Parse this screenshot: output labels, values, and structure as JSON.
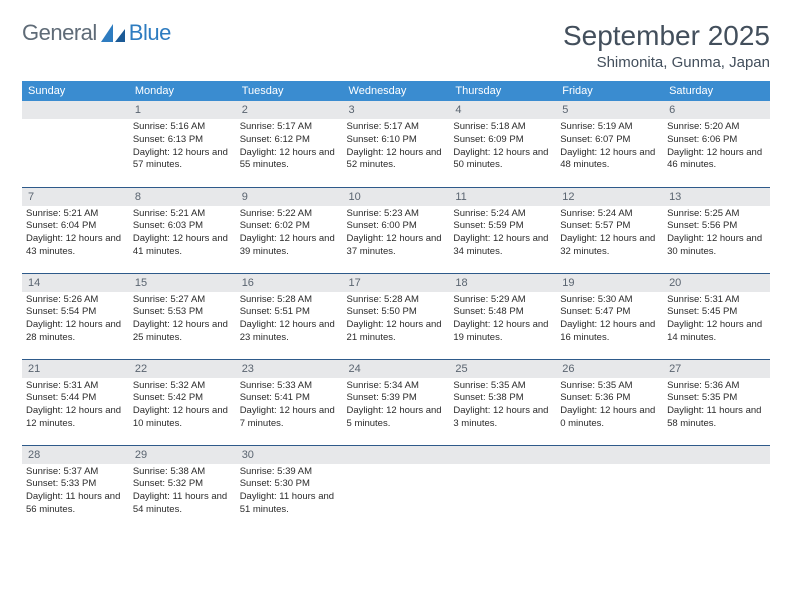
{
  "logo": {
    "text1": "General",
    "text2": "Blue"
  },
  "title": "September 2025",
  "location": "Shimonita, Gunma, Japan",
  "colors": {
    "header_bg": "#3a8cd0",
    "header_text": "#ffffff",
    "daynum_bg": "#e7e8ea",
    "daynum_text": "#5a6470",
    "rule": "#2e5a8a",
    "body_text": "#2b2b2b",
    "title_text": "#434f5c",
    "logo_gray": "#5f6b77",
    "logo_blue": "#2e7cc0"
  },
  "day_headers": [
    "Sunday",
    "Monday",
    "Tuesday",
    "Wednesday",
    "Thursday",
    "Friday",
    "Saturday"
  ],
  "weeks": [
    [
      {
        "n": "",
        "sunrise": "",
        "sunset": "",
        "daylight": ""
      },
      {
        "n": "1",
        "sunrise": "Sunrise: 5:16 AM",
        "sunset": "Sunset: 6:13 PM",
        "daylight": "Daylight: 12 hours and 57 minutes."
      },
      {
        "n": "2",
        "sunrise": "Sunrise: 5:17 AM",
        "sunset": "Sunset: 6:12 PM",
        "daylight": "Daylight: 12 hours and 55 minutes."
      },
      {
        "n": "3",
        "sunrise": "Sunrise: 5:17 AM",
        "sunset": "Sunset: 6:10 PM",
        "daylight": "Daylight: 12 hours and 52 minutes."
      },
      {
        "n": "4",
        "sunrise": "Sunrise: 5:18 AM",
        "sunset": "Sunset: 6:09 PM",
        "daylight": "Daylight: 12 hours and 50 minutes."
      },
      {
        "n": "5",
        "sunrise": "Sunrise: 5:19 AM",
        "sunset": "Sunset: 6:07 PM",
        "daylight": "Daylight: 12 hours and 48 minutes."
      },
      {
        "n": "6",
        "sunrise": "Sunrise: 5:20 AM",
        "sunset": "Sunset: 6:06 PM",
        "daylight": "Daylight: 12 hours and 46 minutes."
      }
    ],
    [
      {
        "n": "7",
        "sunrise": "Sunrise: 5:21 AM",
        "sunset": "Sunset: 6:04 PM",
        "daylight": "Daylight: 12 hours and 43 minutes."
      },
      {
        "n": "8",
        "sunrise": "Sunrise: 5:21 AM",
        "sunset": "Sunset: 6:03 PM",
        "daylight": "Daylight: 12 hours and 41 minutes."
      },
      {
        "n": "9",
        "sunrise": "Sunrise: 5:22 AM",
        "sunset": "Sunset: 6:02 PM",
        "daylight": "Daylight: 12 hours and 39 minutes."
      },
      {
        "n": "10",
        "sunrise": "Sunrise: 5:23 AM",
        "sunset": "Sunset: 6:00 PM",
        "daylight": "Daylight: 12 hours and 37 minutes."
      },
      {
        "n": "11",
        "sunrise": "Sunrise: 5:24 AM",
        "sunset": "Sunset: 5:59 PM",
        "daylight": "Daylight: 12 hours and 34 minutes."
      },
      {
        "n": "12",
        "sunrise": "Sunrise: 5:24 AM",
        "sunset": "Sunset: 5:57 PM",
        "daylight": "Daylight: 12 hours and 32 minutes."
      },
      {
        "n": "13",
        "sunrise": "Sunrise: 5:25 AM",
        "sunset": "Sunset: 5:56 PM",
        "daylight": "Daylight: 12 hours and 30 minutes."
      }
    ],
    [
      {
        "n": "14",
        "sunrise": "Sunrise: 5:26 AM",
        "sunset": "Sunset: 5:54 PM",
        "daylight": "Daylight: 12 hours and 28 minutes."
      },
      {
        "n": "15",
        "sunrise": "Sunrise: 5:27 AM",
        "sunset": "Sunset: 5:53 PM",
        "daylight": "Daylight: 12 hours and 25 minutes."
      },
      {
        "n": "16",
        "sunrise": "Sunrise: 5:28 AM",
        "sunset": "Sunset: 5:51 PM",
        "daylight": "Daylight: 12 hours and 23 minutes."
      },
      {
        "n": "17",
        "sunrise": "Sunrise: 5:28 AM",
        "sunset": "Sunset: 5:50 PM",
        "daylight": "Daylight: 12 hours and 21 minutes."
      },
      {
        "n": "18",
        "sunrise": "Sunrise: 5:29 AM",
        "sunset": "Sunset: 5:48 PM",
        "daylight": "Daylight: 12 hours and 19 minutes."
      },
      {
        "n": "19",
        "sunrise": "Sunrise: 5:30 AM",
        "sunset": "Sunset: 5:47 PM",
        "daylight": "Daylight: 12 hours and 16 minutes."
      },
      {
        "n": "20",
        "sunrise": "Sunrise: 5:31 AM",
        "sunset": "Sunset: 5:45 PM",
        "daylight": "Daylight: 12 hours and 14 minutes."
      }
    ],
    [
      {
        "n": "21",
        "sunrise": "Sunrise: 5:31 AM",
        "sunset": "Sunset: 5:44 PM",
        "daylight": "Daylight: 12 hours and 12 minutes."
      },
      {
        "n": "22",
        "sunrise": "Sunrise: 5:32 AM",
        "sunset": "Sunset: 5:42 PM",
        "daylight": "Daylight: 12 hours and 10 minutes."
      },
      {
        "n": "23",
        "sunrise": "Sunrise: 5:33 AM",
        "sunset": "Sunset: 5:41 PM",
        "daylight": "Daylight: 12 hours and 7 minutes."
      },
      {
        "n": "24",
        "sunrise": "Sunrise: 5:34 AM",
        "sunset": "Sunset: 5:39 PM",
        "daylight": "Daylight: 12 hours and 5 minutes."
      },
      {
        "n": "25",
        "sunrise": "Sunrise: 5:35 AM",
        "sunset": "Sunset: 5:38 PM",
        "daylight": "Daylight: 12 hours and 3 minutes."
      },
      {
        "n": "26",
        "sunrise": "Sunrise: 5:35 AM",
        "sunset": "Sunset: 5:36 PM",
        "daylight": "Daylight: 12 hours and 0 minutes."
      },
      {
        "n": "27",
        "sunrise": "Sunrise: 5:36 AM",
        "sunset": "Sunset: 5:35 PM",
        "daylight": "Daylight: 11 hours and 58 minutes."
      }
    ],
    [
      {
        "n": "28",
        "sunrise": "Sunrise: 5:37 AM",
        "sunset": "Sunset: 5:33 PM",
        "daylight": "Daylight: 11 hours and 56 minutes."
      },
      {
        "n": "29",
        "sunrise": "Sunrise: 5:38 AM",
        "sunset": "Sunset: 5:32 PM",
        "daylight": "Daylight: 11 hours and 54 minutes."
      },
      {
        "n": "30",
        "sunrise": "Sunrise: 5:39 AM",
        "sunset": "Sunset: 5:30 PM",
        "daylight": "Daylight: 11 hours and 51 minutes."
      },
      {
        "n": "",
        "sunrise": "",
        "sunset": "",
        "daylight": ""
      },
      {
        "n": "",
        "sunrise": "",
        "sunset": "",
        "daylight": ""
      },
      {
        "n": "",
        "sunrise": "",
        "sunset": "",
        "daylight": ""
      },
      {
        "n": "",
        "sunrise": "",
        "sunset": "",
        "daylight": ""
      }
    ]
  ]
}
